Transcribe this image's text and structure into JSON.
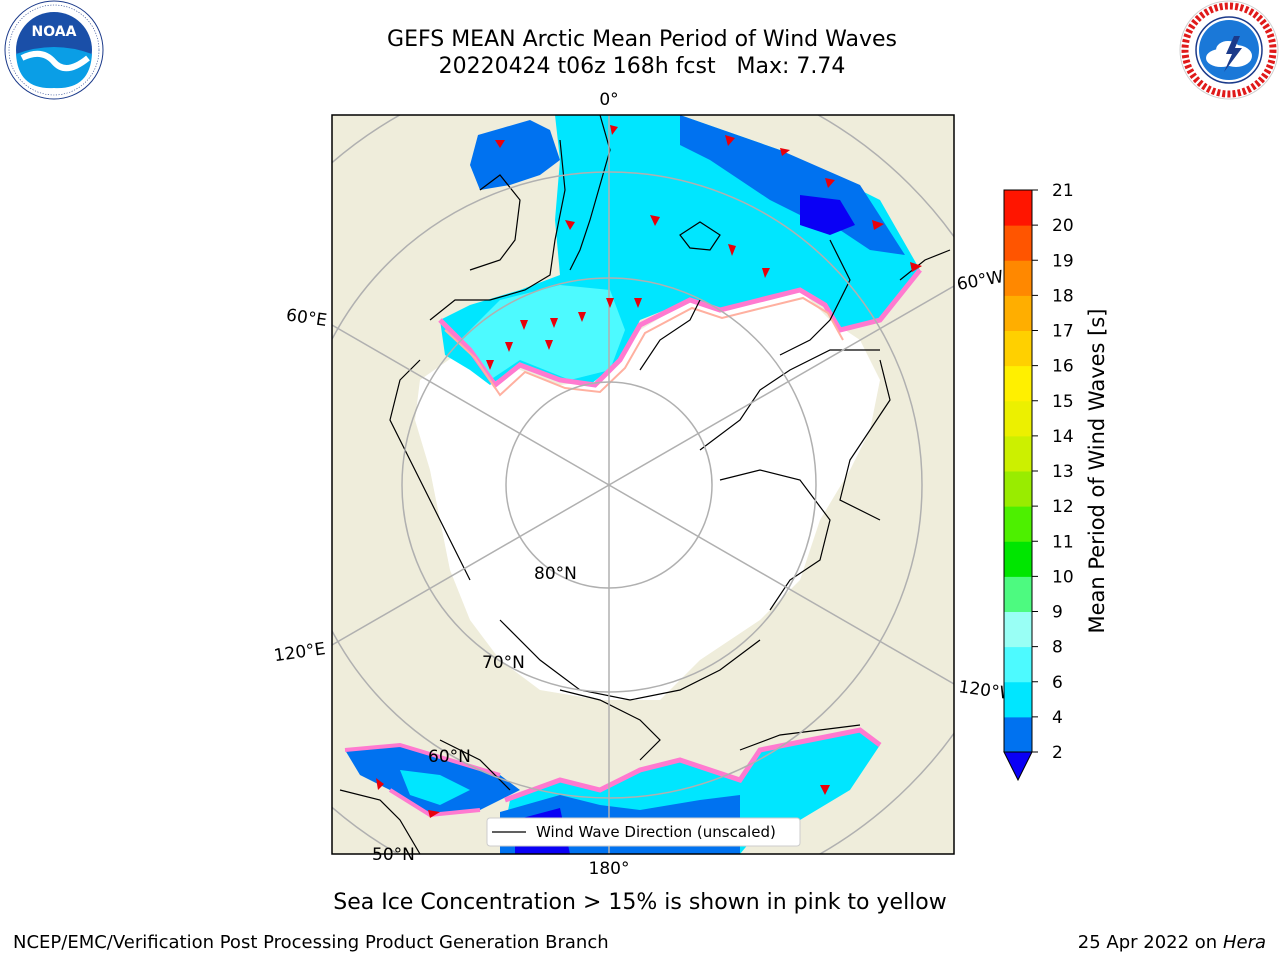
{
  "header": {
    "title_line1": "GEFS MEAN Arctic Mean Period of Wind Waves",
    "title_line2": "20220424 t06z 168h fcst   Max: 7.74"
  },
  "logos": {
    "noaa_text": "NOAA",
    "noaa_ring_text": "NATIONAL OCEANIC AND ATMOSPHERIC ADMINISTRATION · U.S. DEPARTMENT OF COMMERCE",
    "nws_ring_text": "NATIONAL WEATHER SERVICE"
  },
  "map": {
    "projection": "north-polar-stereographic",
    "longitude_labels": [
      "0°",
      "60°W",
      "120°W",
      "180°",
      "120°E",
      "60°E"
    ],
    "latitude_labels": [
      "80°N",
      "70°N",
      "60°N",
      "50°N"
    ],
    "legend_label": "Wind Wave Direction (unscaled)",
    "colors": {
      "land": "#efeddb",
      "ice": "#ffffff",
      "graticule": "#b0b0b0",
      "coast": "#000000",
      "arrow": "#e8000b"
    }
  },
  "colorbar": {
    "title": "Mean Period of Wind Waves [s]",
    "ticks": [
      "2",
      "4",
      "6",
      "8",
      "9",
      "10",
      "11",
      "12",
      "13",
      "14",
      "15",
      "16",
      "17",
      "18",
      "19",
      "20",
      "21"
    ],
    "levels": [
      2,
      4,
      6,
      8,
      9,
      10,
      11,
      12,
      13,
      14,
      15,
      16,
      17,
      18,
      19,
      20,
      21
    ],
    "colors": [
      "#0072f0",
      "#00e6ff",
      "#4dfaff",
      "#99fff5",
      "#4dfa80",
      "#00e600",
      "#4df000",
      "#99ec00",
      "#ccf000",
      "#ecf000",
      "#fff000",
      "#ffd000",
      "#ffae00",
      "#ff8800",
      "#ff5500",
      "#ff1500"
    ],
    "under_color": "#0a00f5",
    "extend": "min"
  },
  "footer": {
    "note": "Sea Ice Concentration > 15% is shown in pink to yellow",
    "left": "NCEP/EMC/Verification Post Processing Product Generation Branch",
    "right_date": "25 Apr 2022 on ",
    "right_host": "Hera"
  }
}
